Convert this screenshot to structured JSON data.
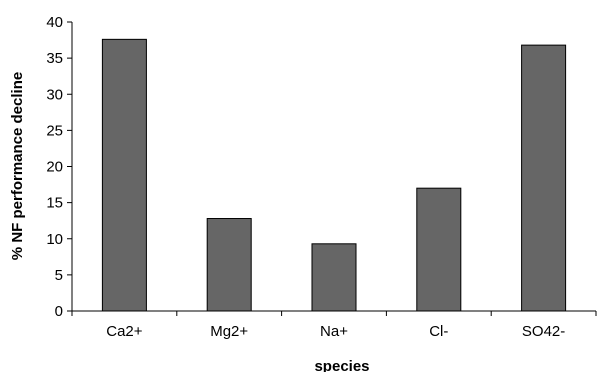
{
  "chart_data": {
    "type": "bar",
    "title": "",
    "xlabel": "species",
    "ylabel": "% NF performance decline",
    "categories": [
      "Ca2+",
      "Mg2+",
      "Na+",
      "Cl-",
      "SO42-"
    ],
    "values": [
      37.6,
      12.8,
      9.3,
      17.0,
      36.8
    ],
    "ylim": [
      0,
      40
    ],
    "yticks": [
      "0",
      "5",
      "10",
      "15",
      "20",
      "25",
      "30",
      "35",
      "40"
    ],
    "grid": false,
    "legend": "none",
    "bar_color": "#666666",
    "bar_stroke": "#000000"
  }
}
